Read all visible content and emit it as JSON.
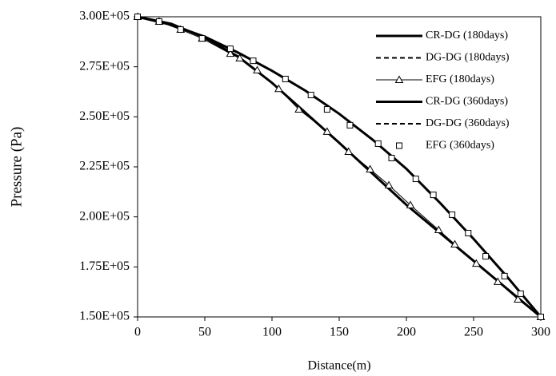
{
  "chart_data": {
    "type": "line",
    "x_label": "Distance(m)",
    "y_label": "Pressure (Pa)",
    "xlim": [
      0,
      300
    ],
    "xticks": [
      0,
      50,
      100,
      150,
      200,
      250,
      300
    ],
    "ylim": [
      150000,
      300000
    ],
    "yticks": [
      {
        "value": 150000,
        "label": "1.50E+05"
      },
      {
        "value": 175000,
        "label": "1.75E+05"
      },
      {
        "value": 200000,
        "label": "2.00E+05"
      },
      {
        "value": 225000,
        "label": "2.25E+05"
      },
      {
        "value": 250000,
        "label": "2.50E+05"
      },
      {
        "value": 275000,
        "label": "2.75E+05"
      },
      {
        "value": 300000,
        "label": "3.00E+05"
      }
    ],
    "legend": "upper right",
    "series": [
      {
        "name": "CR-DG (180days)",
        "color": "#000000",
        "line_style": "solid",
        "line_width": 3,
        "marker": "none",
        "x": [
          0,
          25,
          50,
          75,
          100,
          125,
          150,
          175,
          200,
          225,
          250,
          275,
          300
        ],
        "values": [
          300000,
          296500,
          289500,
          280000,
          267000,
          252000,
          237000,
          221500,
          206000,
          192000,
          178000,
          164000,
          150000
        ]
      },
      {
        "name": "DG-DG (180days)",
        "color": "#000000",
        "line_style": "dashed",
        "line_width": 2,
        "marker": "none",
        "x": [
          0,
          25,
          50,
          75,
          100,
          125,
          150,
          175,
          200,
          225,
          250,
          275,
          300
        ],
        "values": [
          300000,
          296500,
          289500,
          280000,
          267000,
          252000,
          237000,
          221500,
          206000,
          192000,
          178000,
          164000,
          150000
        ]
      },
      {
        "name": "EFG (180days)",
        "color": "#000000",
        "line_style": "solid",
        "line_width": 1,
        "marker": "triangle",
        "x": [
          0,
          16,
          32,
          48,
          69,
          76,
          89,
          105,
          120,
          141,
          157,
          173,
          187,
          203,
          224,
          236,
          252,
          268,
          283,
          300
        ],
        "values": [
          300000,
          297600,
          293600,
          289200,
          281600,
          279300,
          273300,
          264000,
          253700,
          242600,
          232600,
          223800,
          215800,
          205900,
          193500,
          186300,
          176700,
          167600,
          158800,
          150000
        ]
      },
      {
        "name": "CR-DG (360days)",
        "color": "#000000",
        "line_style": "solid",
        "line_width": 3,
        "marker": "none",
        "x": [
          0,
          25,
          50,
          75,
          100,
          125,
          150,
          175,
          200,
          225,
          250,
          275,
          300
        ],
        "values": [
          300000,
          296000,
          290000,
          282000,
          273000,
          263000,
          251500,
          238500,
          224000,
          207000,
          189000,
          170000,
          150000
        ]
      },
      {
        "name": "DG-DG (360days)",
        "color": "#000000",
        "line_style": "dashed",
        "line_width": 2,
        "marker": "none",
        "x": [
          0,
          25,
          50,
          75,
          100,
          125,
          150,
          175,
          200,
          225,
          250,
          275,
          300
        ],
        "values": [
          300000,
          296000,
          290000,
          282000,
          273000,
          263000,
          251500,
          238500,
          224000,
          207000,
          189000,
          170000,
          150000
        ]
      },
      {
        "name": "EFG (360days)",
        "color": "#000000",
        "line_style": "none",
        "line_width": 1,
        "marker": "square",
        "x": [
          0,
          16,
          32,
          48,
          69,
          86,
          110,
          129,
          141,
          158,
          179,
          189,
          207,
          220,
          234,
          246,
          259,
          273,
          285,
          300
        ],
        "values": [
          300000,
          297600,
          293600,
          289200,
          284000,
          278000,
          268900,
          260900,
          253700,
          245800,
          236600,
          229400,
          219000,
          211000,
          201100,
          191900,
          180300,
          170400,
          161600,
          150000
        ]
      }
    ]
  }
}
